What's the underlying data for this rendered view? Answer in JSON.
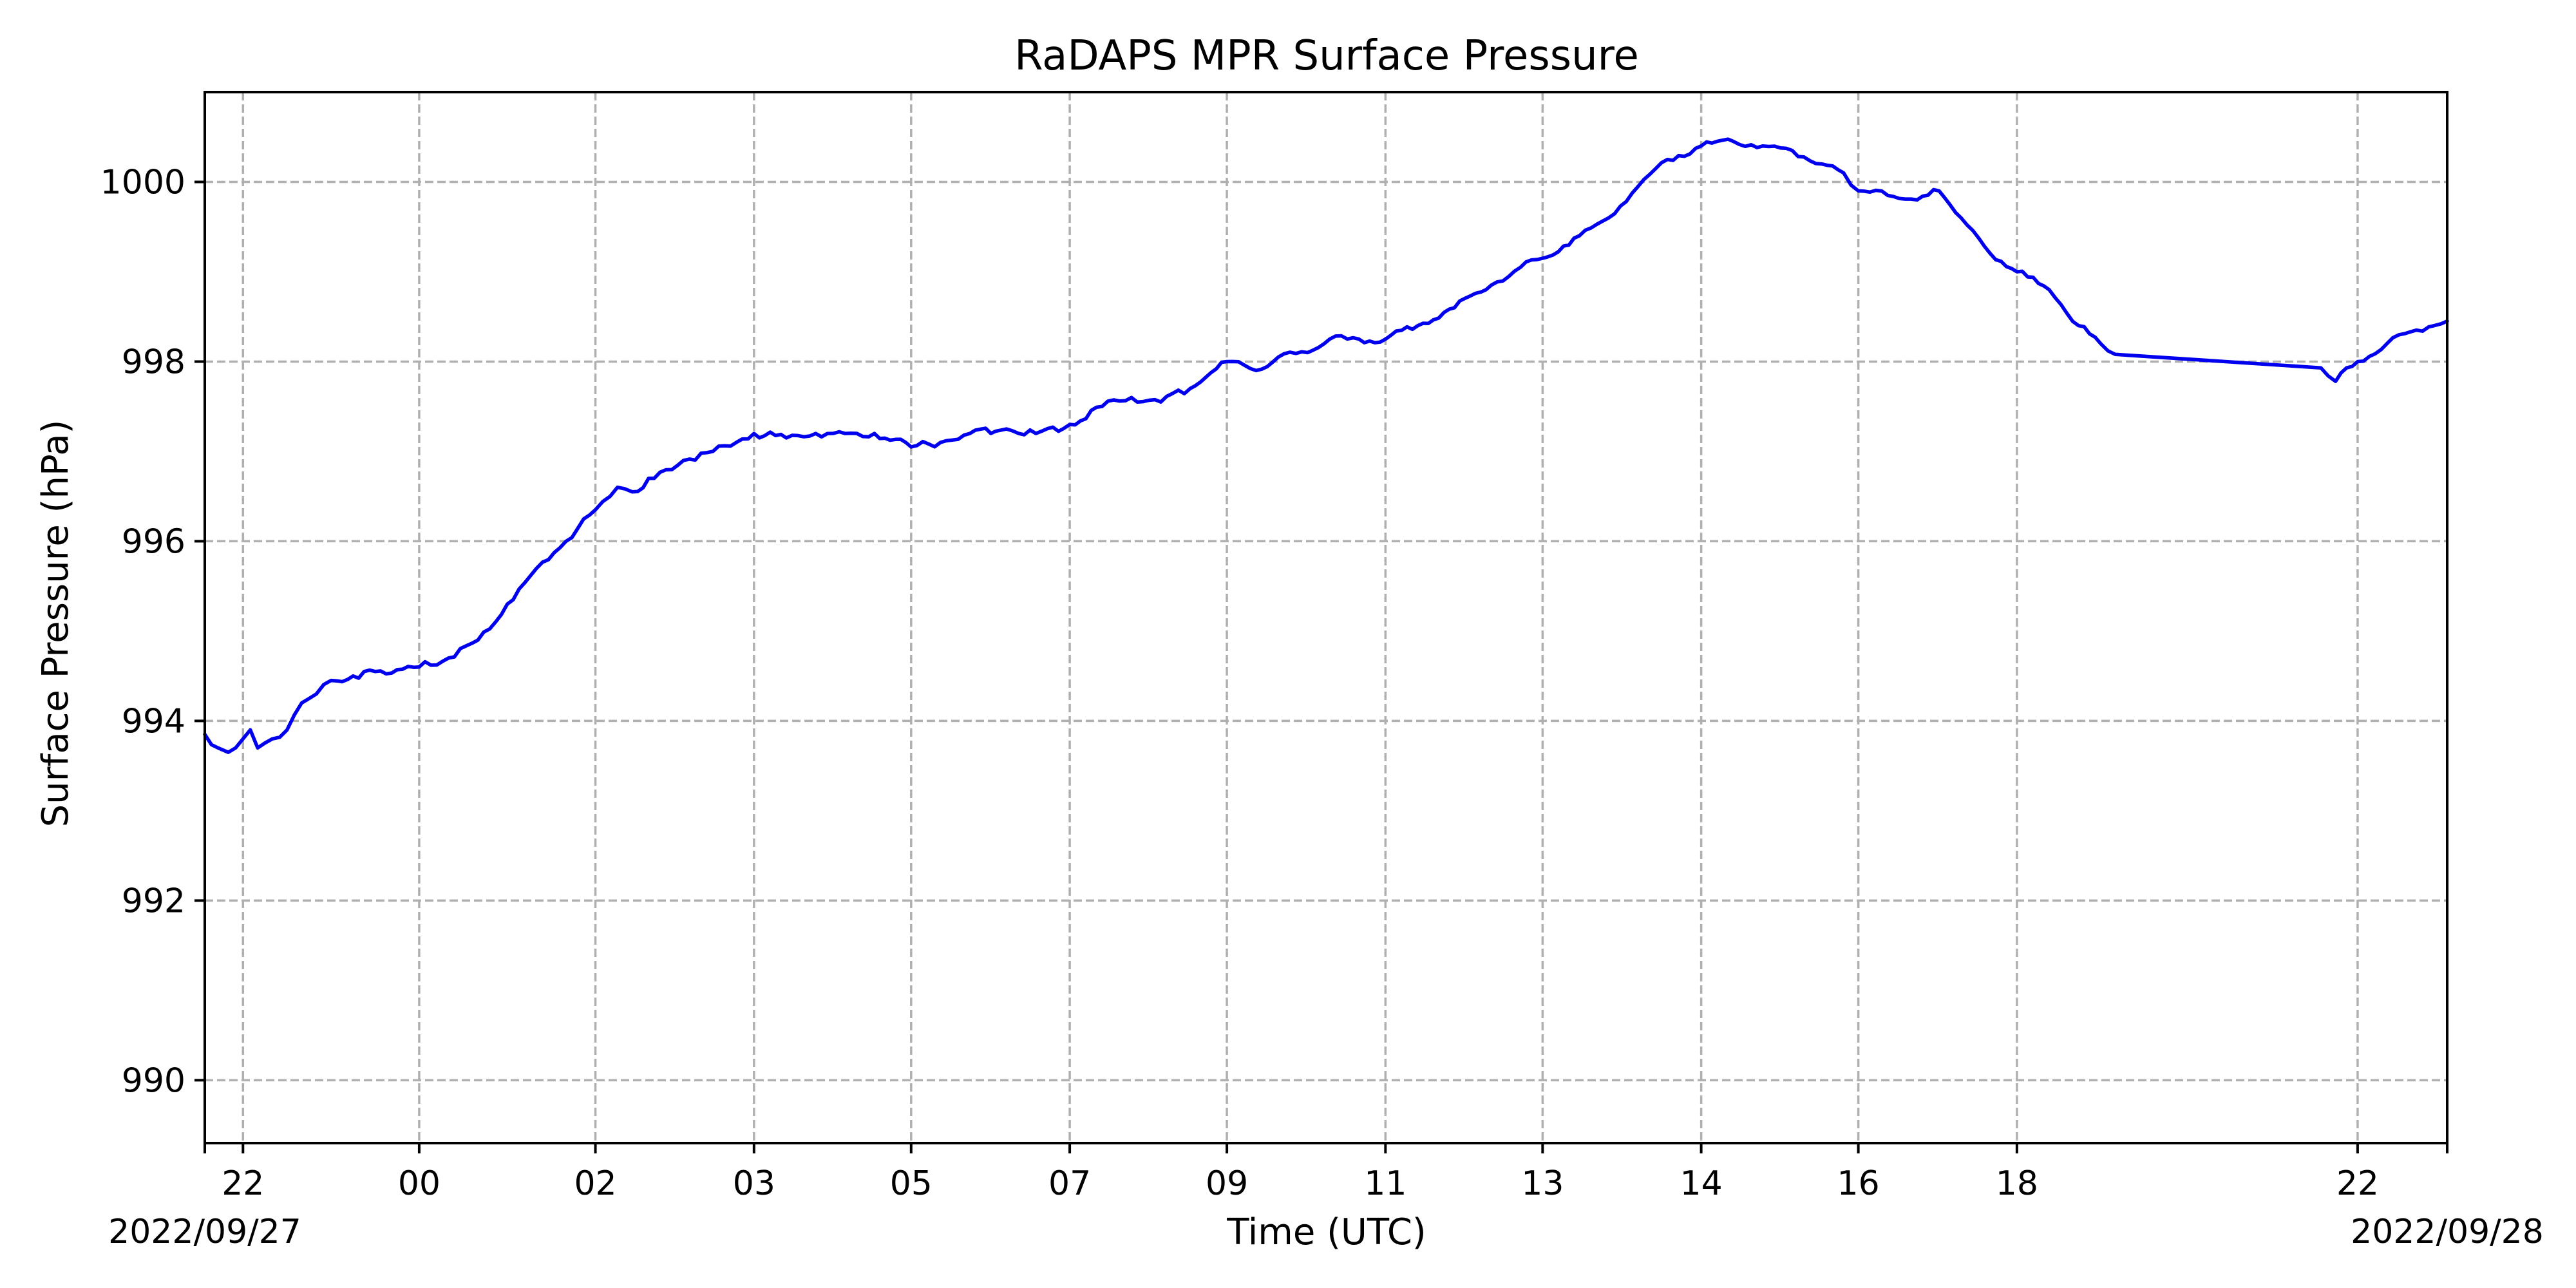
{
  "chart_data": {
    "type": "line",
    "title": "RaDAPS MPR Surface Pressure",
    "xlabel": "Time (UTC)",
    "ylabel": "Surface Pressure (hPa)",
    "x_unit": "UTC time, 2022-09-27 21:34 to 2022-09-28 23:01",
    "xlim": [
      "2022-09-27T21:34",
      "2022-09-28T23:01"
    ],
    "ylim": [
      989.3,
      1001.0
    ],
    "grid": true,
    "x_ticks": [
      {
        "t": "2022-09-27T22:00",
        "label": "22"
      },
      {
        "t": "2022-09-28T00:00",
        "label": "00"
      },
      {
        "t": "2022-09-28T02:00",
        "label": "02"
      },
      {
        "t": "2022-09-28T03:48",
        "label": "03"
      },
      {
        "t": "2022-09-28T05:35",
        "label": "05"
      },
      {
        "t": "2022-09-28T07:23",
        "label": "07"
      },
      {
        "t": "2022-09-28T09:10",
        "label": "09"
      },
      {
        "t": "2022-09-28T10:58",
        "label": "11"
      },
      {
        "t": "2022-09-28T12:45",
        "label": "13"
      },
      {
        "t": "2022-09-28T14:33",
        "label": "14"
      },
      {
        "t": "2022-09-28T16:20",
        "label": "16"
      },
      {
        "t": "2022-09-28T18:08",
        "label": "18"
      },
      {
        "t": "2022-09-28T22:00",
        "label": "22"
      }
    ],
    "x_date_labels": [
      {
        "position": "left",
        "text": "2022/09/27"
      },
      {
        "position": "right",
        "text": "2022/09/28"
      }
    ],
    "y_ticks": [
      990,
      992,
      994,
      996,
      998,
      1000
    ],
    "series": [
      {
        "color": "#0000ee",
        "x": [
          "2022-09-27T21:34",
          "2022-09-27T21:43",
          "2022-09-27T21:50",
          "2022-09-27T22:00",
          "2022-09-27T22:05",
          "2022-09-27T22:10",
          "2022-09-27T22:20",
          "2022-09-27T22:30",
          "2022-09-27T22:40",
          "2022-09-27T22:50",
          "2022-09-27T23:00",
          "2022-09-27T23:15",
          "2022-09-27T23:30",
          "2022-09-27T23:45",
          "2022-09-28T00:00",
          "2022-09-28T00:20",
          "2022-09-28T00:40",
          "2022-09-28T01:00",
          "2022-09-28T01:20",
          "2022-09-28T01:40",
          "2022-09-28T02:00",
          "2022-09-28T02:10",
          "2022-09-28T02:15",
          "2022-09-28T02:25",
          "2022-09-28T02:40",
          "2022-09-28T03:00",
          "2022-09-28T03:20",
          "2022-09-28T03:48",
          "2022-09-28T04:10",
          "2022-09-28T04:30",
          "2022-09-28T04:50",
          "2022-09-28T05:10",
          "2022-09-28T05:35",
          "2022-09-28T05:55",
          "2022-09-28T06:15",
          "2022-09-28T06:40",
          "2022-09-28T07:00",
          "2022-09-28T07:23",
          "2022-09-28T07:45",
          "2022-09-28T08:05",
          "2022-09-28T08:25",
          "2022-09-28T08:45",
          "2022-09-28T09:10",
          "2022-09-28T09:30",
          "2022-09-28T09:45",
          "2022-09-28T10:05",
          "2022-09-28T10:20",
          "2022-09-28T10:40",
          "2022-09-28T10:58",
          "2022-09-28T11:20",
          "2022-09-28T11:45",
          "2022-09-28T12:10",
          "2022-09-28T12:30",
          "2022-09-28T12:45",
          "2022-09-28T13:10",
          "2022-09-28T13:30",
          "2022-09-28T13:50",
          "2022-09-28T14:10",
          "2022-09-28T14:33",
          "2022-09-28T14:55",
          "2022-09-28T15:15",
          "2022-09-28T15:35",
          "2022-09-28T15:55",
          "2022-09-28T16:10",
          "2022-09-28T16:20",
          "2022-09-28T16:40",
          "2022-09-28T17:00",
          "2022-09-28T17:15",
          "2022-09-28T17:30",
          "2022-09-28T17:50",
          "2022-09-28T18:08",
          "2022-09-28T18:30",
          "2022-09-28T18:50",
          "2022-09-28T19:05",
          "2022-09-28T19:15",
          "2022-09-28T21:35",
          "2022-09-28T21:45",
          "2022-09-28T22:00",
          "2022-09-28T22:20",
          "2022-09-28T22:40",
          "2022-09-28T23:01"
        ],
        "values": [
          993.85,
          993.7,
          993.65,
          993.8,
          993.9,
          993.7,
          993.8,
          993.9,
          994.2,
          994.3,
          994.45,
          994.5,
          994.55,
          994.57,
          994.6,
          994.7,
          994.9,
          995.3,
          995.7,
          996.0,
          996.35,
          996.5,
          996.6,
          996.55,
          996.7,
          996.9,
          997.0,
          997.2,
          997.15,
          997.2,
          997.2,
          997.2,
          997.05,
          997.1,
          997.2,
          997.25,
          997.2,
          997.3,
          997.5,
          997.6,
          997.55,
          997.7,
          998.0,
          997.9,
          998.05,
          998.1,
          998.25,
          998.25,
          998.25,
          998.4,
          998.6,
          998.85,
          999.05,
          999.15,
          999.4,
          999.6,
          999.95,
          1000.25,
          1000.4,
          1000.45,
          1000.4,
          1000.35,
          1000.2,
          1000.1,
          999.9,
          999.85,
          999.8,
          999.9,
          999.6,
          999.2,
          999.0,
          998.8,
          998.4,
          998.2,
          998.08,
          997.93,
          997.78,
          998.0,
          998.2,
          998.35,
          998.45
        ]
      }
    ]
  }
}
